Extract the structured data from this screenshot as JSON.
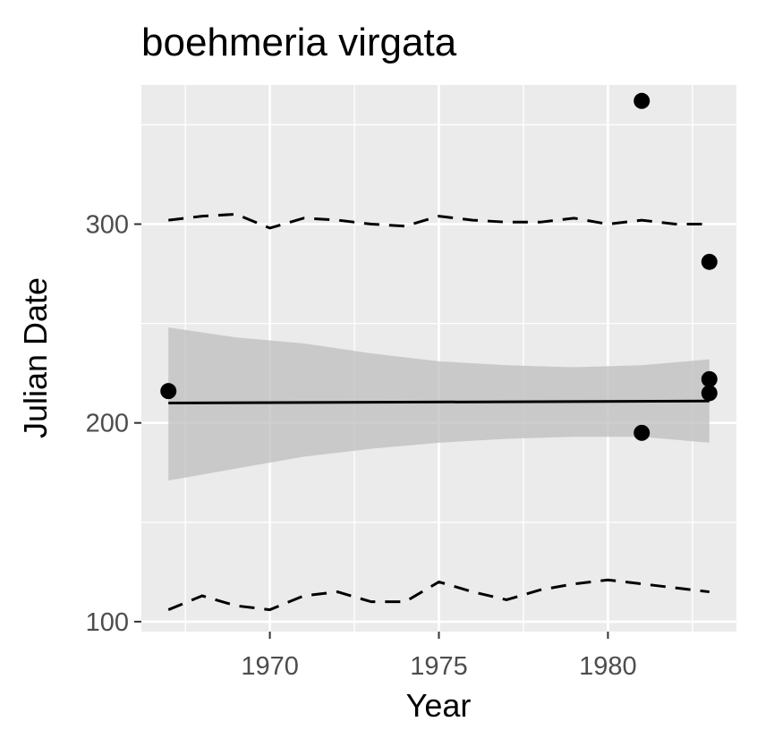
{
  "chart_data": {
    "type": "scatter",
    "title": "boehmeria virgata",
    "xlabel": "Year",
    "ylabel": "Julian Date",
    "xlim": [
      1966.2,
      1983.8
    ],
    "ylim": [
      95,
      370
    ],
    "x_ticks": [
      1970,
      1975,
      1980
    ],
    "y_ticks": [
      100,
      200,
      300
    ],
    "grid": true,
    "legend": "none",
    "colors": {
      "panel": "#ebebeb",
      "grid": "#ffffff",
      "points": "#000000",
      "ribbon": "#bebebe",
      "fit_line": "#000000",
      "quantile_lines": "#000000"
    },
    "points": [
      {
        "x": 1967,
        "y": 216
      },
      {
        "x": 1981,
        "y": 362
      },
      {
        "x": 1981,
        "y": 195
      },
      {
        "x": 1983,
        "y": 281
      },
      {
        "x": 1983,
        "y": 222
      },
      {
        "x": 1983,
        "y": 215
      }
    ],
    "fit_line": {
      "x": [
        1967,
        1983
      ],
      "y": [
        210,
        211
      ]
    },
    "confidence_band": {
      "x": [
        1967,
        1969,
        1971,
        1973,
        1975,
        1977,
        1979,
        1981,
        1983
      ],
      "upper": [
        248,
        243,
        240,
        235,
        231,
        229,
        228,
        229,
        232
      ],
      "lower": [
        171,
        177,
        183,
        187,
        190,
        192,
        193,
        193,
        190
      ]
    },
    "upper_quantile_line": {
      "x": [
        1967,
        1968,
        1969,
        1970,
        1971,
        1972,
        1973,
        1974,
        1975,
        1976,
        1977,
        1978,
        1979,
        1980,
        1981,
        1982,
        1983
      ],
      "y": [
        302,
        304,
        305,
        298,
        303,
        302,
        300,
        299,
        304,
        302,
        301,
        301,
        303,
        300,
        302,
        300,
        300
      ]
    },
    "lower_quantile_line": {
      "x": [
        1967,
        1968,
        1969,
        1970,
        1971,
        1972,
        1973,
        1974,
        1975,
        1976,
        1977,
        1978,
        1979,
        1980,
        1981,
        1982,
        1983
      ],
      "y": [
        106,
        113,
        108,
        106,
        113,
        115,
        110,
        110,
        120,
        115,
        111,
        116,
        119,
        121,
        119,
        117,
        115
      ]
    }
  }
}
